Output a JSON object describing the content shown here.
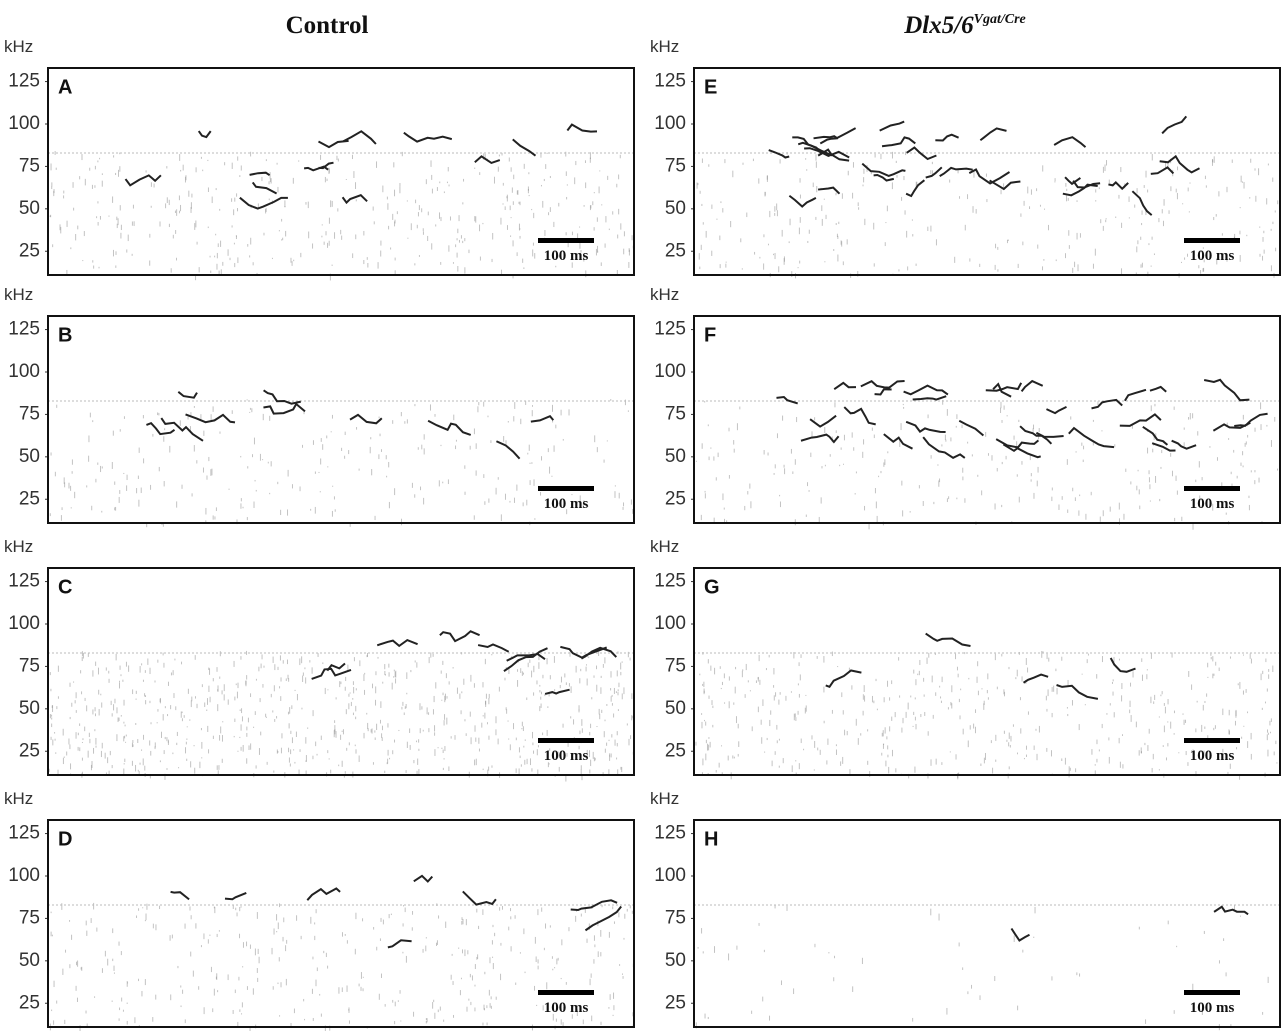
{
  "columns": [
    {
      "title": "Control"
    },
    {
      "title": "Dlx5/6",
      "superscript": "Vgat/Cre"
    }
  ],
  "chart_data": [
    {
      "type": "spectrogram",
      "panel": "A",
      "y_label": "kHz",
      "ylim": [
        11,
        133
      ],
      "yticks": [
        25,
        50,
        75,
        100,
        125
      ],
      "scale_bar": "100 ms"
    },
    {
      "type": "spectrogram",
      "panel": "B",
      "y_label": "kHz",
      "ylim": [
        11,
        133
      ],
      "yticks": [
        25,
        50,
        75,
        100,
        125
      ],
      "scale_bar": "100 ms"
    },
    {
      "type": "spectrogram",
      "panel": "C",
      "y_label": "kHz",
      "ylim": [
        11,
        133
      ],
      "yticks": [
        25,
        50,
        75,
        100,
        125
      ],
      "scale_bar": "100 ms"
    },
    {
      "type": "spectrogram",
      "panel": "D",
      "y_label": "kHz",
      "ylim": [
        11,
        133
      ],
      "yticks": [
        25,
        50,
        75,
        100,
        125
      ],
      "scale_bar": "100 ms"
    },
    {
      "type": "spectrogram",
      "panel": "E",
      "y_label": "kHz",
      "ylim": [
        11,
        133
      ],
      "yticks": [
        25,
        50,
        75,
        100,
        125
      ],
      "scale_bar": "100 ms"
    },
    {
      "type": "spectrogram",
      "panel": "F",
      "y_label": "kHz",
      "ylim": [
        11,
        133
      ],
      "yticks": [
        25,
        50,
        75,
        100,
        125
      ],
      "scale_bar": "100 ms"
    },
    {
      "type": "spectrogram",
      "panel": "G",
      "y_label": "kHz",
      "ylim": [
        11,
        133
      ],
      "yticks": [
        25,
        50,
        75,
        100,
        125
      ],
      "scale_bar": "100 ms"
    },
    {
      "type": "spectrogram",
      "panel": "H",
      "y_label": "kHz",
      "ylim": [
        11,
        133
      ],
      "yticks": [
        25,
        50,
        75,
        100,
        125
      ],
      "scale_bar": "100 ms"
    }
  ]
}
